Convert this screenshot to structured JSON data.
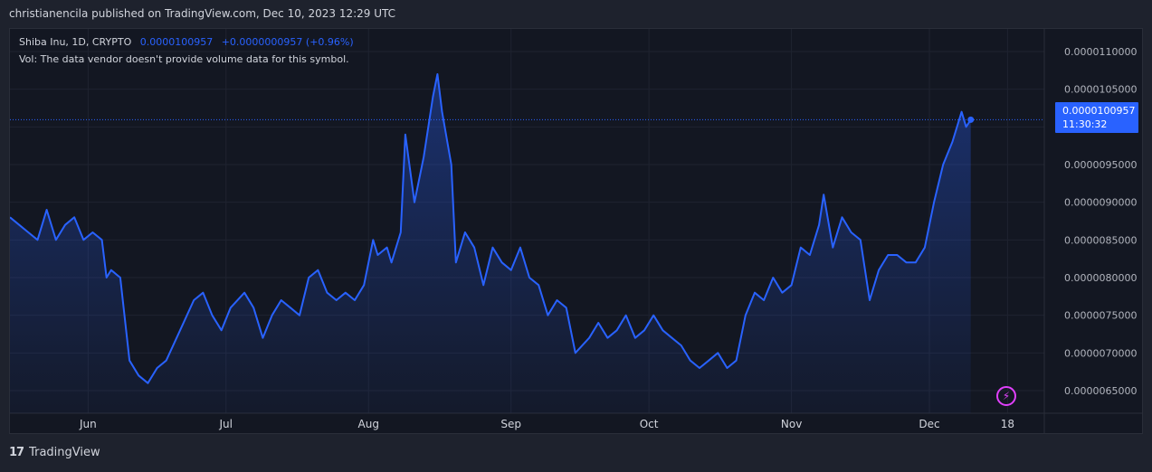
{
  "header": {
    "text": "christianencila published on TradingView.com, Dec 10, 2023 12:29 UTC"
  },
  "legend": {
    "symbol": "Shiba Inu, 1D, CRYPTO",
    "price": "0.0000100957",
    "change": "+0.0000000957 (+0.96%)",
    "volume_note": "Vol: The data vendor doesn't provide volume data for this symbol."
  },
  "price_tag": {
    "price": "0.0000100957",
    "countdown": "11:30:32"
  },
  "footer": {
    "logo_text": "TradingView",
    "logo_mark": "17"
  },
  "colors": {
    "background": "#131722",
    "line": "#2962ff",
    "grid": "#1f2330",
    "accent": "#e040fb"
  },
  "chart_data": {
    "type": "area",
    "y_tick_labels": [
      "0.0000110000",
      "0.0000105000",
      "0.0000100000",
      "0.0000095000",
      "0.0000090000",
      "0.0000085000",
      "0.0000080000",
      "0.0000075000",
      "0.0000070000",
      "0.0000065000"
    ],
    "y_ticks": [
      1.1e-05,
      1.05e-05,
      1e-05,
      9.5e-06,
      9e-06,
      8.5e-06,
      8e-06,
      7.5e-06,
      7e-06,
      6.5e-06
    ],
    "ylim": [
      6.2e-06,
      1.13e-05
    ],
    "x_tick_labels": [
      "Jun",
      "Jul",
      "Aug",
      "Sep",
      "Oct",
      "Nov",
      "Dec",
      "18"
    ],
    "x_tick_dates": [
      "2023-06-01",
      "2023-07-01",
      "2023-08-01",
      "2023-09-01",
      "2023-10-01",
      "2023-11-01",
      "2023-12-01",
      "2023-12-18"
    ],
    "xlim": [
      "2023-05-15",
      "2023-12-26"
    ],
    "grid": true,
    "last_price": 1.00957e-05,
    "series": [
      {
        "values": [
          [
            "2023-05-15",
            8.8e-06
          ],
          [
            "2023-05-17",
            8.7e-06
          ],
          [
            "2023-05-19",
            8.6e-06
          ],
          [
            "2023-05-21",
            8.5e-06
          ],
          [
            "2023-05-23",
            8.9e-06
          ],
          [
            "2023-05-25",
            8.5e-06
          ],
          [
            "2023-05-27",
            8.7e-06
          ],
          [
            "2023-05-29",
            8.8e-06
          ],
          [
            "2023-05-31",
            8.5e-06
          ],
          [
            "2023-06-02",
            8.6e-06
          ],
          [
            "2023-06-04",
            8.5e-06
          ],
          [
            "2023-06-05",
            8e-06
          ],
          [
            "2023-06-06",
            8.1e-06
          ],
          [
            "2023-06-08",
            8e-06
          ],
          [
            "2023-06-10",
            6.9e-06
          ],
          [
            "2023-06-12",
            6.7e-06
          ],
          [
            "2023-06-14",
            6.6e-06
          ],
          [
            "2023-06-16",
            6.8e-06
          ],
          [
            "2023-06-18",
            6.9e-06
          ],
          [
            "2023-06-21",
            7.3e-06
          ],
          [
            "2023-06-24",
            7.7e-06
          ],
          [
            "2023-06-26",
            7.8e-06
          ],
          [
            "2023-06-28",
            7.5e-06
          ],
          [
            "2023-06-30",
            7.3e-06
          ],
          [
            "2023-07-02",
            7.6e-06
          ],
          [
            "2023-07-05",
            7.8e-06
          ],
          [
            "2023-07-07",
            7.6e-06
          ],
          [
            "2023-07-09",
            7.2e-06
          ],
          [
            "2023-07-11",
            7.5e-06
          ],
          [
            "2023-07-13",
            7.7e-06
          ],
          [
            "2023-07-15",
            7.6e-06
          ],
          [
            "2023-07-17",
            7.5e-06
          ],
          [
            "2023-07-19",
            8e-06
          ],
          [
            "2023-07-21",
            8.1e-06
          ],
          [
            "2023-07-23",
            7.8e-06
          ],
          [
            "2023-07-25",
            7.7e-06
          ],
          [
            "2023-07-27",
            7.8e-06
          ],
          [
            "2023-07-29",
            7.7e-06
          ],
          [
            "2023-07-31",
            7.9e-06
          ],
          [
            "2023-08-02",
            8.5e-06
          ],
          [
            "2023-08-03",
            8.3e-06
          ],
          [
            "2023-08-05",
            8.4e-06
          ],
          [
            "2023-08-06",
            8.2e-06
          ],
          [
            "2023-08-08",
            8.6e-06
          ],
          [
            "2023-08-09",
            9.9e-06
          ],
          [
            "2023-08-11",
            9e-06
          ],
          [
            "2023-08-13",
            9.6e-06
          ],
          [
            "2023-08-15",
            1.04e-05
          ],
          [
            "2023-08-16",
            1.07e-05
          ],
          [
            "2023-08-17",
            1.02e-05
          ],
          [
            "2023-08-19",
            9.5e-06
          ],
          [
            "2023-08-20",
            8.2e-06
          ],
          [
            "2023-08-22",
            8.6e-06
          ],
          [
            "2023-08-24",
            8.4e-06
          ],
          [
            "2023-08-26",
            7.9e-06
          ],
          [
            "2023-08-28",
            8.4e-06
          ],
          [
            "2023-08-30",
            8.2e-06
          ],
          [
            "2023-09-01",
            8.1e-06
          ],
          [
            "2023-09-03",
            8.4e-06
          ],
          [
            "2023-09-05",
            8e-06
          ],
          [
            "2023-09-07",
            7.9e-06
          ],
          [
            "2023-09-09",
            7.5e-06
          ],
          [
            "2023-09-11",
            7.7e-06
          ],
          [
            "2023-09-13",
            7.6e-06
          ],
          [
            "2023-09-15",
            7e-06
          ],
          [
            "2023-09-18",
            7.2e-06
          ],
          [
            "2023-09-20",
            7.4e-06
          ],
          [
            "2023-09-22",
            7.2e-06
          ],
          [
            "2023-09-24",
            7.3e-06
          ],
          [
            "2023-09-26",
            7.5e-06
          ],
          [
            "2023-09-28",
            7.2e-06
          ],
          [
            "2023-09-30",
            7.3e-06
          ],
          [
            "2023-10-02",
            7.5e-06
          ],
          [
            "2023-10-04",
            7.3e-06
          ],
          [
            "2023-10-06",
            7.2e-06
          ],
          [
            "2023-10-08",
            7.1e-06
          ],
          [
            "2023-10-10",
            6.9e-06
          ],
          [
            "2023-10-12",
            6.8e-06
          ],
          [
            "2023-10-14",
            6.9e-06
          ],
          [
            "2023-10-16",
            7e-06
          ],
          [
            "2023-10-18",
            6.8e-06
          ],
          [
            "2023-10-20",
            6.9e-06
          ],
          [
            "2023-10-22",
            7.5e-06
          ],
          [
            "2023-10-24",
            7.8e-06
          ],
          [
            "2023-10-26",
            7.7e-06
          ],
          [
            "2023-10-28",
            8e-06
          ],
          [
            "2023-10-30",
            7.8e-06
          ],
          [
            "2023-11-01",
            7.9e-06
          ],
          [
            "2023-11-03",
            8.4e-06
          ],
          [
            "2023-11-05",
            8.3e-06
          ],
          [
            "2023-11-07",
            8.7e-06
          ],
          [
            "2023-11-08",
            9.1e-06
          ],
          [
            "2023-11-10",
            8.4e-06
          ],
          [
            "2023-11-12",
            8.8e-06
          ],
          [
            "2023-11-14",
            8.6e-06
          ],
          [
            "2023-11-16",
            8.5e-06
          ],
          [
            "2023-11-18",
            7.7e-06
          ],
          [
            "2023-11-20",
            8.1e-06
          ],
          [
            "2023-11-22",
            8.3e-06
          ],
          [
            "2023-11-24",
            8.3e-06
          ],
          [
            "2023-11-26",
            8.2e-06
          ],
          [
            "2023-11-28",
            8.2e-06
          ],
          [
            "2023-11-30",
            8.4e-06
          ],
          [
            "2023-12-02",
            9e-06
          ],
          [
            "2023-12-04",
            9.5e-06
          ],
          [
            "2023-12-06",
            9.8e-06
          ],
          [
            "2023-12-08",
            1.02e-05
          ],
          [
            "2023-12-09",
            1e-05
          ],
          [
            "2023-12-10",
            1.00957e-05
          ]
        ]
      }
    ]
  }
}
